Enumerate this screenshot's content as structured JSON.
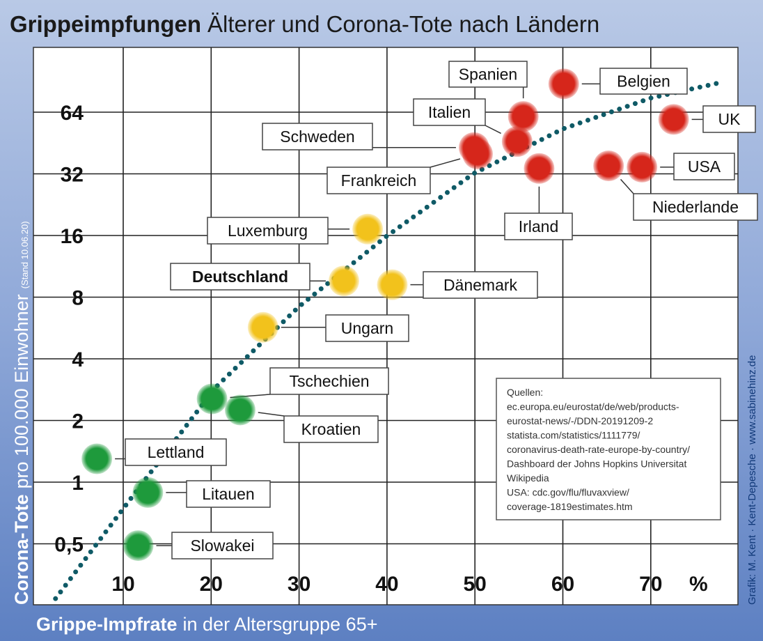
{
  "chart_data": {
    "type": "scatter",
    "title_bold": "Grippeimpfungen",
    "title_rest": "Älterer und Corona-Tote nach Ländern",
    "xlabel_bold": "Grippe-Impfrate",
    "xlabel_rest": "in der Altersgruppe 65+",
    "ylabel_bold": "Corona-Tote",
    "ylabel_rest": "pro 100.000 Einwohner",
    "ylabel_note": "(Stand 10.06.20)",
    "x_unit": "%",
    "y_scale": "log2",
    "xlim": [
      0,
      80
    ],
    "ylim": [
      0.25,
      128
    ],
    "grid": true,
    "x_ticks": [
      {
        "v": 10,
        "label": "10"
      },
      {
        "v": 20,
        "label": "20"
      },
      {
        "v": 30,
        "label": "30"
      },
      {
        "v": 40,
        "label": "40"
      },
      {
        "v": 50,
        "label": "50"
      },
      {
        "v": 60,
        "label": "60"
      },
      {
        "v": 70,
        "label": "70"
      }
    ],
    "y_ticks": [
      {
        "v": 0.5,
        "label": "0,5"
      },
      {
        "v": 1,
        "label": "1"
      },
      {
        "v": 2,
        "label": "2"
      },
      {
        "v": 4,
        "label": "4"
      },
      {
        "v": 8,
        "label": "8"
      },
      {
        "v": 16,
        "label": "16"
      },
      {
        "v": 32,
        "label": "32"
      },
      {
        "v": 64,
        "label": "64"
      }
    ],
    "colors": {
      "high": "#d6261b",
      "mid": "#f2c21c",
      "low": "#1e9a3c",
      "trend": "#0f5a66"
    },
    "points": [
      {
        "name": "Belgien",
        "x": 60.1,
        "y": 88,
        "group": "high"
      },
      {
        "name": "Spanien",
        "x": 55.5,
        "y": 61,
        "group": "high"
      },
      {
        "name": "UK",
        "x": 72.6,
        "y": 59,
        "group": "high"
      },
      {
        "name": "Italien",
        "x": 54.8,
        "y": 46,
        "group": "high"
      },
      {
        "name": "Schweden",
        "x": 49.9,
        "y": 43,
        "group": "high"
      },
      {
        "name": "Frankreich",
        "x": 50.3,
        "y": 40,
        "group": "high"
      },
      {
        "name": "Irland",
        "x": 57.3,
        "y": 34,
        "group": "high"
      },
      {
        "name": "Niederlande",
        "x": 65.2,
        "y": 35,
        "group": "high"
      },
      {
        "name": "USA",
        "x": 69,
        "y": 34.5,
        "group": "high"
      },
      {
        "name": "Luxemburg",
        "x": 37.8,
        "y": 17.2,
        "group": "mid"
      },
      {
        "name": "Deutschland",
        "x": 35.1,
        "y": 9.6,
        "group": "mid",
        "bold": true
      },
      {
        "name": "Dänemark",
        "x": 40.6,
        "y": 9.2,
        "group": "mid"
      },
      {
        "name": "Ungarn",
        "x": 25.9,
        "y": 5.7,
        "group": "mid"
      },
      {
        "name": "Tschechien",
        "x": 20.1,
        "y": 2.55,
        "group": "low"
      },
      {
        "name": "Kroatien",
        "x": 23.3,
        "y": 2.25,
        "group": "low"
      },
      {
        "name": "Lettland",
        "x": 7,
        "y": 1.3,
        "group": "low"
      },
      {
        "name": "Litauen",
        "x": 12.8,
        "y": 0.89,
        "group": "low"
      },
      {
        "name": "Slowakei",
        "x": 11.7,
        "y": 0.49,
        "group": "low"
      }
    ],
    "trend": [
      [
        2.3,
        0.27
      ],
      [
        11.8,
        0.94
      ],
      [
        20.5,
        2.9
      ],
      [
        30,
        7.2
      ],
      [
        39.9,
        15.8
      ],
      [
        49.8,
        32
      ],
      [
        60,
        53
      ],
      [
        70,
        75
      ],
      [
        78.3,
        90
      ]
    ],
    "sources": [
      "Quellen:",
      "ec.europa.eu/eurostat/de/web/products-",
      "eurostat-news/-/DDN-20191209-2",
      "statista.com/statistics/1111779/",
      "coronavirus-death-rate-europe-by-country/",
      "Dashboard der Johns Hopkins Universitat",
      "Wikipedia",
      "USA: cdc.gov/flu/fluvaxview/",
      "coverage-1819estimates.htm"
    ],
    "credit": "Grafik: M. Kent · Kent-Depesche · www.sabinehinz.de"
  }
}
